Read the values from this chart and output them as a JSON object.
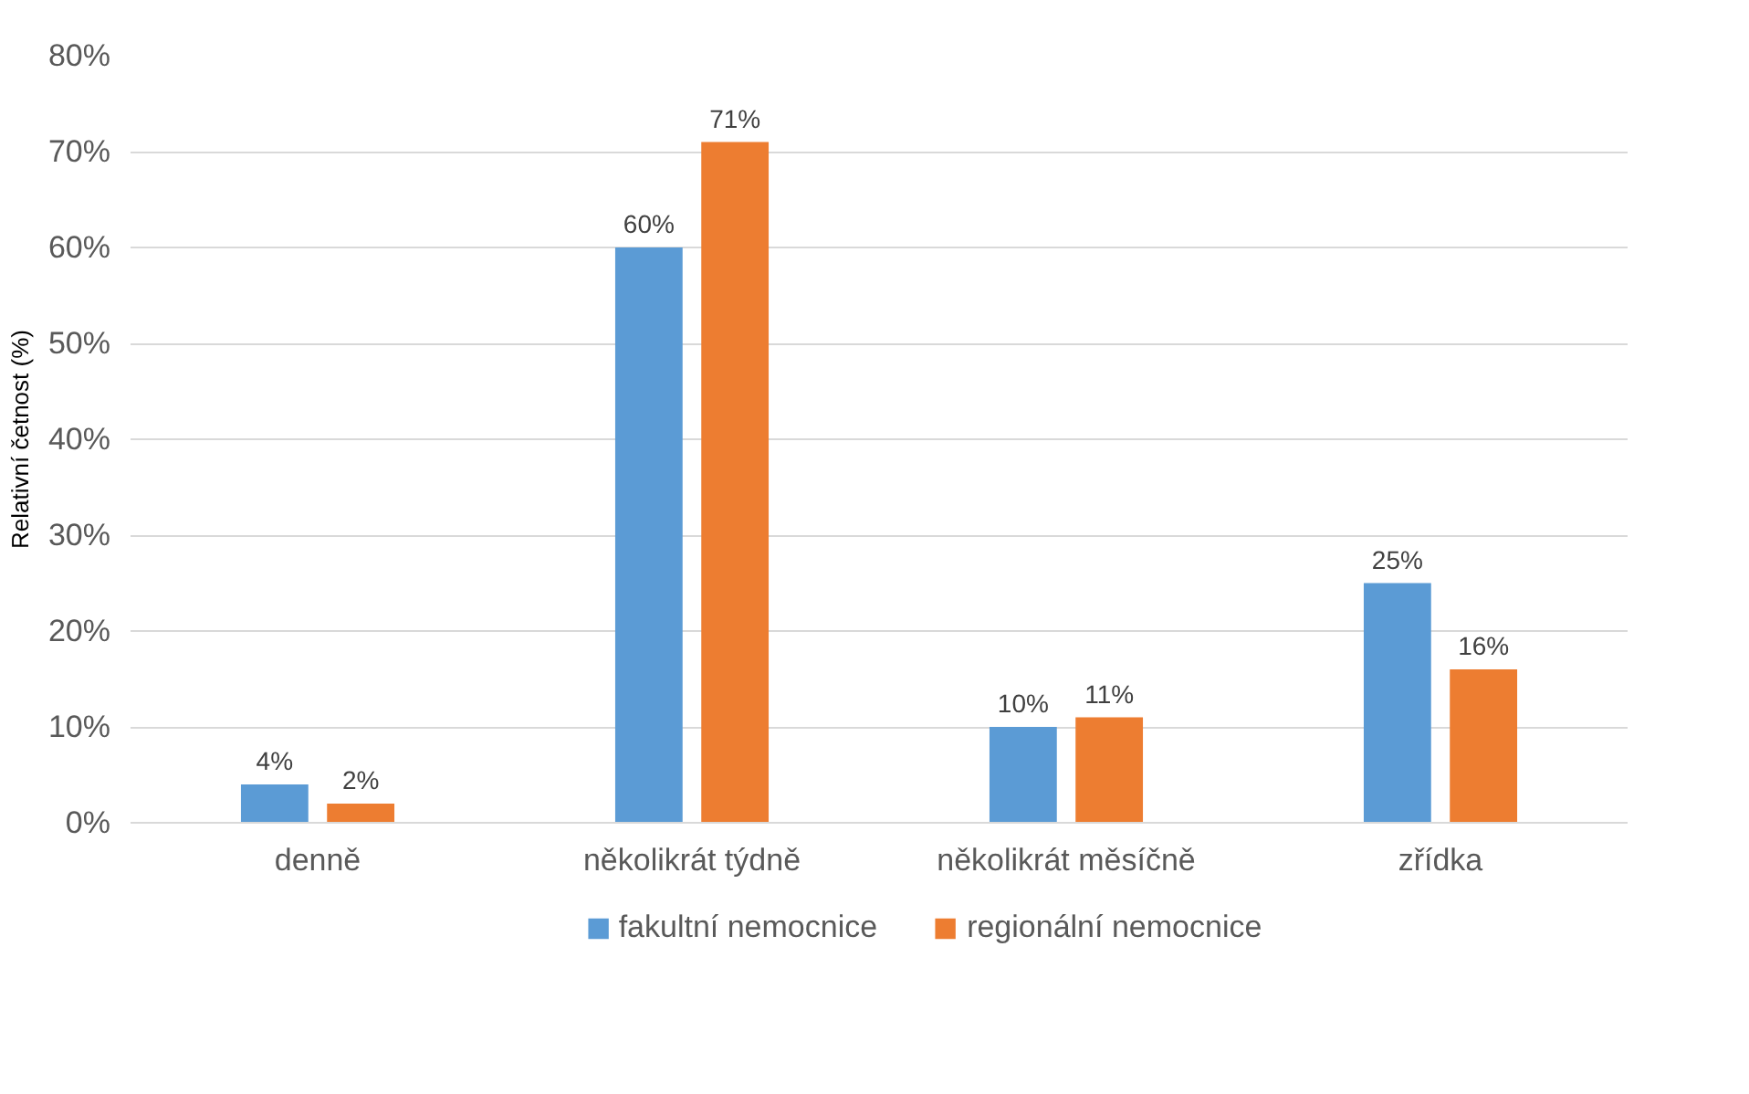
{
  "chart_data": {
    "type": "bar",
    "ylabel": "Relativní četnost (%)",
    "categories": [
      "denně",
      "několikrát týdně",
      "několikrát měsíčně",
      "zřídka"
    ],
    "series": [
      {
        "name": "fakultní nemocnice",
        "color": "#5b9bd5",
        "values": [
          4,
          60,
          10,
          25
        ],
        "value_labels": [
          "4%",
          "60%",
          "10%",
          "25%"
        ]
      },
      {
        "name": "regionální nemocnice",
        "color": "#ed7d31",
        "values": [
          2,
          71,
          11,
          16
        ],
        "value_labels": [
          "2%",
          "71%",
          "11%",
          "16%"
        ]
      }
    ],
    "ylim": [
      0,
      80
    ],
    "yticks": [
      {
        "value": 0,
        "label": "0%"
      },
      {
        "value": 10,
        "label": "10%"
      },
      {
        "value": 20,
        "label": "20%"
      },
      {
        "value": 30,
        "label": "30%"
      },
      {
        "value": 40,
        "label": "40%"
      },
      {
        "value": 50,
        "label": "50%"
      },
      {
        "value": 60,
        "label": "60%"
      },
      {
        "value": 70,
        "label": "70%"
      },
      {
        "value": 80,
        "label": "80%"
      }
    ],
    "grid": "y",
    "legend": "bottom"
  }
}
